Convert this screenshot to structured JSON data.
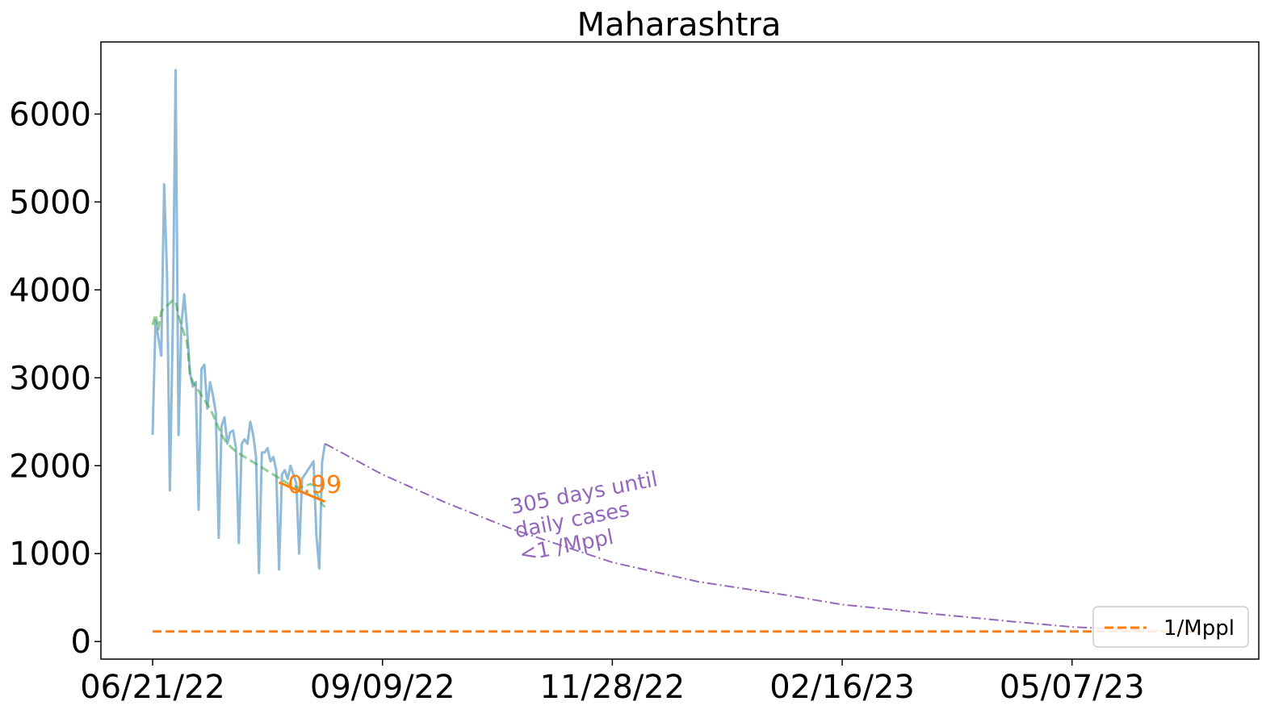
{
  "chart_data": {
    "type": "line",
    "title": "Maharashtra",
    "xlabel": "",
    "ylabel": "",
    "x_ticks": [
      "06/21/22",
      "09/09/22",
      "11/28/22",
      "02/16/23",
      "05/07/23"
    ],
    "x_range": [
      "2022-06-03",
      "2023-07-11"
    ],
    "ylim": [
      -200,
      6820
    ],
    "y_ticks": [
      0,
      1000,
      2000,
      3000,
      4000,
      5000,
      6000
    ],
    "grid": false,
    "legend": {
      "placement": "lower-right",
      "entries": [
        {
          "label": "1/Mppl",
          "color": "#ff7f0e",
          "style": "dashed"
        }
      ]
    },
    "series": [
      {
        "role": "daily-cases",
        "color": "#1f77b4",
        "opacity": 0.5,
        "style": "solid",
        "points": [
          [
            "2022-06-21",
            2350
          ],
          [
            "2022-06-22",
            3650
          ],
          [
            "2022-06-23",
            3450
          ],
          [
            "2022-06-24",
            3250
          ],
          [
            "2022-06-25",
            5200
          ],
          [
            "2022-06-26",
            4200
          ],
          [
            "2022-06-27",
            1720
          ],
          [
            "2022-06-28",
            3600
          ],
          [
            "2022-06-29",
            6500
          ],
          [
            "2022-06-30",
            2350
          ],
          [
            "2022-07-01",
            3600
          ],
          [
            "2022-07-02",
            3950
          ],
          [
            "2022-07-03",
            3550
          ],
          [
            "2022-07-04",
            3050
          ],
          [
            "2022-07-05",
            2900
          ],
          [
            "2022-07-06",
            2950
          ],
          [
            "2022-07-07",
            1500
          ],
          [
            "2022-07-08",
            3100
          ],
          [
            "2022-07-09",
            3150
          ],
          [
            "2022-07-10",
            2650
          ],
          [
            "2022-07-11",
            2950
          ],
          [
            "2022-07-12",
            2800
          ],
          [
            "2022-07-13",
            2600
          ],
          [
            "2022-07-14",
            1180
          ],
          [
            "2022-07-15",
            2450
          ],
          [
            "2022-07-16",
            2550
          ],
          [
            "2022-07-17",
            2250
          ],
          [
            "2022-07-18",
            2380
          ],
          [
            "2022-07-19",
            2400
          ],
          [
            "2022-07-20",
            2200
          ],
          [
            "2022-07-21",
            1120
          ],
          [
            "2022-07-22",
            2250
          ],
          [
            "2022-07-23",
            2300
          ],
          [
            "2022-07-24",
            2250
          ],
          [
            "2022-07-25",
            2500
          ],
          [
            "2022-07-26",
            2350
          ],
          [
            "2022-07-27",
            2100
          ],
          [
            "2022-07-28",
            780
          ],
          [
            "2022-07-29",
            2150
          ],
          [
            "2022-07-30",
            2150
          ],
          [
            "2022-07-31",
            2200
          ],
          [
            "2022-08-01",
            2050
          ],
          [
            "2022-08-02",
            2100
          ],
          [
            "2022-08-03",
            1950
          ],
          [
            "2022-08-04",
            820
          ],
          [
            "2022-08-05",
            1900
          ],
          [
            "2022-08-06",
            1950
          ],
          [
            "2022-08-07",
            1850
          ],
          [
            "2022-08-08",
            2000
          ],
          [
            "2022-08-09",
            1900
          ],
          [
            "2022-08-10",
            1800
          ],
          [
            "2022-08-11",
            1000
          ],
          [
            "2022-08-12",
            1850
          ],
          [
            "2022-08-13",
            1900
          ],
          [
            "2022-08-14",
            1950
          ],
          [
            "2022-08-15",
            2000
          ],
          [
            "2022-08-16",
            2050
          ],
          [
            "2022-08-17",
            1200
          ],
          [
            "2022-08-18",
            830
          ],
          [
            "2022-08-19",
            2050
          ],
          [
            "2022-08-20",
            2250
          ]
        ]
      },
      {
        "role": "rolling-average",
        "color": "#2ca02c",
        "opacity": 0.5,
        "style": "dashed",
        "points": [
          [
            "2022-06-21",
            3600
          ],
          [
            "2022-06-22",
            3720
          ],
          [
            "2022-06-23",
            3550
          ],
          [
            "2022-06-24",
            3750
          ],
          [
            "2022-06-25",
            3800
          ],
          [
            "2022-06-26",
            3820
          ],
          [
            "2022-06-27",
            3850
          ],
          [
            "2022-06-28",
            3880
          ],
          [
            "2022-06-29",
            3870
          ],
          [
            "2022-06-30",
            3700
          ],
          [
            "2022-07-01",
            3600
          ],
          [
            "2022-07-02",
            3500
          ],
          [
            "2022-07-03",
            3400
          ],
          [
            "2022-07-04",
            3050
          ],
          [
            "2022-07-05",
            2950
          ],
          [
            "2022-07-06",
            2900
          ],
          [
            "2022-07-07",
            2850
          ],
          [
            "2022-07-08",
            2800
          ],
          [
            "2022-07-09",
            2750
          ],
          [
            "2022-07-10",
            2700
          ],
          [
            "2022-07-11",
            2650
          ],
          [
            "2022-07-12",
            2580
          ],
          [
            "2022-07-13",
            2500
          ],
          [
            "2022-07-14",
            2430
          ],
          [
            "2022-07-15",
            2350
          ],
          [
            "2022-07-16",
            2300
          ],
          [
            "2022-07-17",
            2250
          ],
          [
            "2022-07-18",
            2220
          ],
          [
            "2022-07-19",
            2190
          ],
          [
            "2022-07-20",
            2160
          ],
          [
            "2022-07-21",
            2140
          ],
          [
            "2022-07-22",
            2120
          ],
          [
            "2022-07-23",
            2100
          ],
          [
            "2022-07-24",
            2080
          ],
          [
            "2022-07-25",
            2060
          ],
          [
            "2022-07-26",
            2040
          ],
          [
            "2022-07-27",
            2020
          ],
          [
            "2022-07-28",
            2000
          ],
          [
            "2022-07-29",
            1980
          ],
          [
            "2022-07-30",
            1960
          ],
          [
            "2022-07-31",
            1940
          ],
          [
            "2022-08-01",
            1920
          ],
          [
            "2022-08-02",
            1900
          ],
          [
            "2022-08-03",
            1880
          ],
          [
            "2022-08-04",
            1860
          ],
          [
            "2022-08-05",
            1840
          ],
          [
            "2022-08-06",
            1820
          ],
          [
            "2022-08-07",
            1800
          ],
          [
            "2022-08-08",
            1780
          ],
          [
            "2022-08-09",
            1770
          ],
          [
            "2022-08-10",
            1760
          ],
          [
            "2022-08-11",
            1750
          ],
          [
            "2022-08-12",
            1760
          ],
          [
            "2022-08-13",
            1770
          ],
          [
            "2022-08-14",
            1780
          ],
          [
            "2022-08-15",
            1790
          ],
          [
            "2022-08-16",
            1780
          ],
          [
            "2022-08-17",
            1700
          ],
          [
            "2022-08-18",
            1620
          ],
          [
            "2022-08-19",
            1560
          ],
          [
            "2022-08-20",
            1530
          ]
        ]
      },
      {
        "role": "trend-segment",
        "color": "#ff7f0e",
        "opacity": 1,
        "style": "solid",
        "points": [
          [
            "2022-08-04",
            1810
          ],
          [
            "2022-08-20",
            1590
          ]
        ]
      },
      {
        "role": "projection",
        "color": "#9467bd",
        "opacity": 1,
        "style": "dashdot",
        "points": [
          [
            "2022-08-20",
            2250
          ],
          [
            "2022-09-09",
            1900
          ],
          [
            "2022-10-01",
            1580
          ],
          [
            "2022-10-24",
            1280
          ],
          [
            "2022-11-28",
            900
          ],
          [
            "2022-12-28",
            680
          ],
          [
            "2023-01-27",
            530
          ],
          [
            "2023-02-16",
            420
          ],
          [
            "2023-03-18",
            320
          ],
          [
            "2023-04-17",
            225
          ],
          [
            "2023-05-07",
            165
          ],
          [
            "2023-05-27",
            135
          ],
          [
            "2023-06-21",
            100
          ]
        ]
      },
      {
        "role": "threshold",
        "name": "1/Mppl",
        "color": "#ff7f0e",
        "opacity": 1,
        "style": "dashed",
        "points": [
          [
            "2022-06-21",
            115
          ],
          [
            "2023-06-21",
            115
          ]
        ]
      }
    ],
    "annotations": [
      {
        "text": "0.99",
        "color": "#ff7f0e",
        "at": [
          "2022-08-07",
          1780
        ]
      },
      {
        "lines": [
          "305 days until",
          "daily cases",
          "<1 /Mppl"
        ],
        "color": "#9467bd",
        "at": [
          "2022-10-24",
          1450
        ],
        "rotation": -11
      }
    ]
  }
}
